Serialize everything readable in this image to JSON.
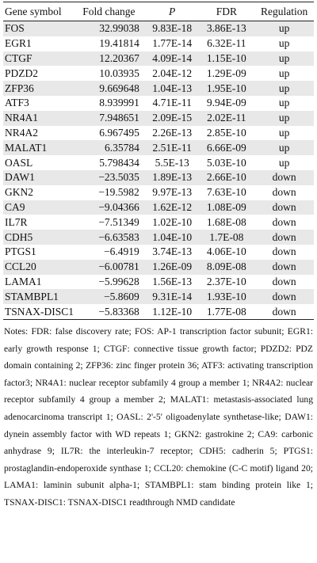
{
  "table": {
    "header": [
      "Gene symbol",
      "Fold change",
      "P",
      "FDR",
      "Regulation"
    ],
    "rows": [
      [
        "FOS",
        "32.99038",
        "9.83E-18",
        "3.86E-13",
        "up"
      ],
      [
        "EGR1",
        "19.41814",
        "1.77E-14",
        "6.32E-11",
        "up"
      ],
      [
        "CTGF",
        "12.20367",
        "4.09E-14",
        "1.15E-10",
        "up"
      ],
      [
        "PDZD2",
        "10.03935",
        "2.04E-12",
        "1.29E-09",
        "up"
      ],
      [
        "ZFP36",
        "9.669648",
        "1.04E-13",
        "1.95E-10",
        "up"
      ],
      [
        "ATF3",
        "8.939991",
        "4.71E-11",
        "9.94E-09",
        "up"
      ],
      [
        "NR4A1",
        "7.948651",
        "2.09E-15",
        "2.02E-11",
        "up"
      ],
      [
        "NR4A2",
        "6.967495",
        "2.26E-13",
        "2.85E-10",
        "up"
      ],
      [
        "MALAT1",
        "6.35784",
        "2.51E-11",
        "6.66E-09",
        "up"
      ],
      [
        "OASL",
        "5.798434",
        "5.5E-13",
        "5.03E-10",
        "up"
      ],
      [
        "DAW1",
        "−23.5035",
        "1.89E-13",
        "2.66E-10",
        "down"
      ],
      [
        "GKN2",
        "−19.5982",
        "9.97E-13",
        "7.63E-10",
        "down"
      ],
      [
        "CA9",
        "−9.04366",
        "1.62E-12",
        "1.08E-09",
        "down"
      ],
      [
        "IL7R",
        "−7.51349",
        "1.02E-10",
        "1.68E-08",
        "down"
      ],
      [
        "CDH5",
        "−6.63583",
        "1.04E-10",
        "1.7E-08",
        "down"
      ],
      [
        "PTGS1",
        "−6.4919",
        "3.74E-13",
        "4.06E-10",
        "down"
      ],
      [
        "CCL20",
        "−6.00781",
        "1.26E-09",
        "8.09E-08",
        "down"
      ],
      [
        "LAMA1",
        "−5.99628",
        "1.56E-13",
        "2.37E-10",
        "down"
      ],
      [
        "STAMBPL1",
        "−5.8609",
        "9.31E-14",
        "1.93E-10",
        "down"
      ],
      [
        "TSNAX-DISC1",
        "−5.83368",
        "1.12E-10",
        "1.77E-08",
        "down"
      ]
    ]
  },
  "notes": "Notes: FDR: false discovery rate; FOS: AP-1 transcription factor subunit; EGR1: early growth response 1; CTGF: connective tissue growth factor; PDZD2: PDZ domain containing 2; ZFP36: zinc finger protein 36; ATF3: activating transcription factor3; NR4A1: nuclear receptor subfamily 4 group a member 1; NR4A2: nuclear receptor subfamily 4 group a member 2; MALAT1: metastasis-associated lung adenocarcinoma transcript 1; OASL: 2'-5' oligoadenylate synthetase-like; DAW1: dynein assembly factor with WD repeats 1; GKN2: gastrokine 2; CA9: carbonic anhydrase 9; IL7R: the interleukin-7 receptor; CDH5: cadherin 5; PTGS1: prostaglandin-endoperoxide synthase 1; CCL20: chemokine (C-C motif) ligand 20; LAMA1: laminin subunit alpha-1; STAMBPL1: stam binding protein like 1; TSNAX-DISC1: TSNAX-DISC1 readthrough NMD candidate"
}
